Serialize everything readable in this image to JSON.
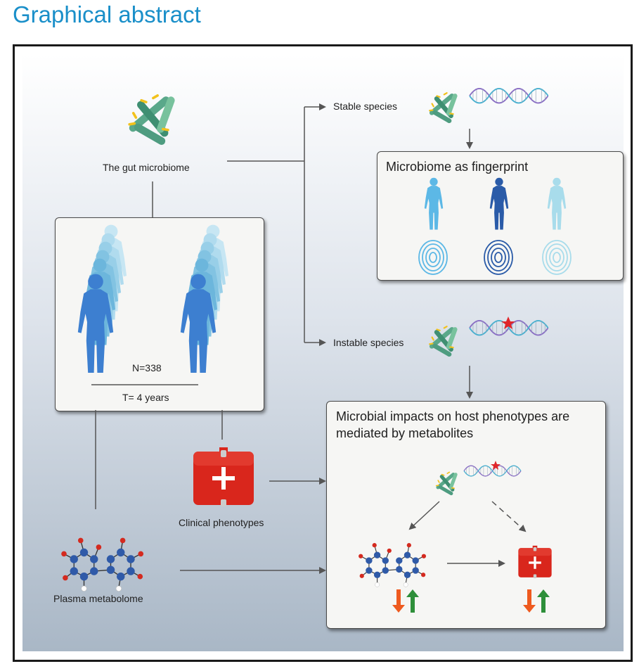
{
  "page_title": "Graphical abstract",
  "labels": {
    "gut_microbiome": "The gut microbiome",
    "stable_species": "Stable species",
    "instable_species": "Instable species",
    "cohort_n": "N=338",
    "cohort_t": "T= 4 years",
    "clinical_phenotypes": "Clinical phenotypes",
    "plasma_metabolome": "Plasma metabolome"
  },
  "fingerprint_box": {
    "title": "Microbiome as fingerprint"
  },
  "impact_box": {
    "title_line1": "Microbial impacts on host phenotypes are",
    "title_line2": "mediated by metabolites"
  },
  "colors": {
    "title_blue": "#1a8fc9",
    "figure_blue": "#3d7fd0",
    "figure_light": "#6fc0e8",
    "figure_pale": "#a8dceb",
    "bacteria_green": "#5aa88a",
    "bacteria_yellow": "#f2c21c",
    "kit_red": "#d9261c",
    "arrow_orange": "#ee5a1f",
    "arrow_green": "#2e8f3a",
    "atom_blue": "#2f5aa8",
    "atom_red": "#d42a1f"
  }
}
